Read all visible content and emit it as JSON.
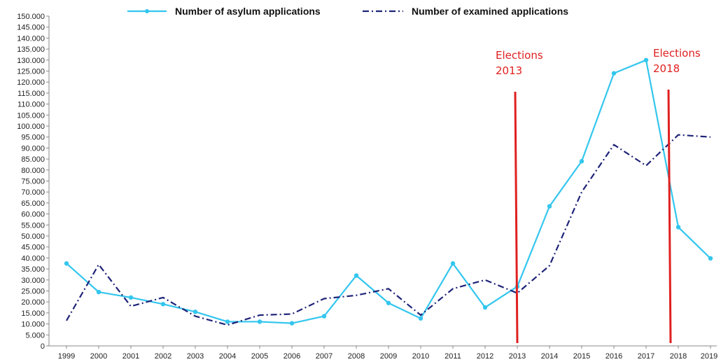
{
  "chart_data": {
    "type": "line",
    "x": [
      "1999",
      "2000",
      "2001",
      "2002",
      "2003",
      "2004",
      "2005",
      "2006",
      "2007",
      "2008",
      "2009",
      "2010",
      "2011",
      "2012",
      "2013",
      "2014",
      "2015",
      "2016",
      "2017",
      "2018",
      "2019"
    ],
    "series": [
      {
        "name": "Number of asylum applications",
        "color": "#33c6ee",
        "style": "solid-markers",
        "values": [
          37500,
          24500,
          22000,
          19000,
          15500,
          11000,
          11000,
          10300,
          13500,
          32000,
          19500,
          12500,
          37500,
          17500,
          27000,
          63500,
          84000,
          124000,
          130000,
          54000,
          39800
        ]
      },
      {
        "name": "Number of examined applications",
        "color": "#1f2478",
        "style": "dash-dot",
        "values": [
          11500,
          37000,
          18000,
          22000,
          13500,
          9500,
          14000,
          14500,
          21500,
          23000,
          26000,
          14000,
          26000,
          30000,
          24000,
          36500,
          70000,
          91500,
          82000,
          96000,
          95000
        ]
      }
    ],
    "ylim": [
      0,
      150000
    ],
    "yticks": [
      "0",
      "5.000",
      "10.000",
      "15.000",
      "20.000",
      "25.000",
      "30.000",
      "35.000",
      "40.000",
      "45.000",
      "50.000",
      "55.000",
      "60.000",
      "65.000",
      "70.000",
      "75.000",
      "80.000",
      "85.000",
      "90.000",
      "95.000",
      "100.000",
      "105.000",
      "110.000",
      "115.000",
      "120.000",
      "125.000",
      "130.000",
      "135.000",
      "140.000",
      "145.000",
      "150.000"
    ],
    "title": "",
    "xlabel": "",
    "ylabel": "",
    "legend_position": "top-center",
    "annotations": [
      {
        "line1": "Elections",
        "line2": "2013",
        "color": "#e02020"
      },
      {
        "line1": "Elections",
        "line2": "2018",
        "color": "#e02020"
      }
    ],
    "grid": false
  }
}
